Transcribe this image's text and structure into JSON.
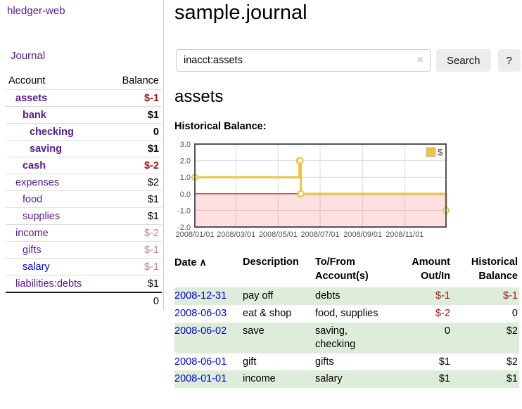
{
  "colors": {
    "purple": "#551a8b",
    "blue": "#0000dd",
    "negative": "#a11616",
    "negative_muted": "#c08585",
    "row_green": "#ddedd9",
    "button_bg": "#ececec",
    "chart_line": "#edc240",
    "chart_negative_fill": "rgba(255,0,0,0.12)",
    "chart_zero_line": "#a40000",
    "chart_border": "#545454",
    "chart_grid": "#dcdcdc"
  },
  "app": {
    "title": "hledger-web"
  },
  "sidebar": {
    "nav_journal": "Journal",
    "accounts_table": {
      "headers": {
        "account": "Account",
        "balance": "Balance"
      },
      "rows": [
        {
          "name": "assets",
          "indent": 1,
          "balance": "$-1",
          "bold": true,
          "negative": "strong"
        },
        {
          "name": "bank",
          "indent": 2,
          "balance": "$1",
          "bold": true
        },
        {
          "name": "checking",
          "indent": 3,
          "balance": "0",
          "bold": true
        },
        {
          "name": "saving",
          "indent": 3,
          "balance": "$1",
          "bold": true
        },
        {
          "name": "cash",
          "indent": 2,
          "balance": "$-2",
          "bold": true,
          "negative": "strong"
        },
        {
          "name": "expenses",
          "indent": 1,
          "balance": "$2"
        },
        {
          "name": "food",
          "indent": 2,
          "balance": "$1"
        },
        {
          "name": "supplies",
          "indent": 2,
          "balance": "$1"
        },
        {
          "name": "income",
          "indent": 1,
          "balance": "$-2",
          "negative": "muted"
        },
        {
          "name": "gifts",
          "indent": 2,
          "balance": "$-1",
          "negative": "muted"
        },
        {
          "name": "salary",
          "indent": 2,
          "balance": "$-1",
          "negative": "muted",
          "link_style": "unvisited"
        },
        {
          "name": "liabilities:debts",
          "indent": 1,
          "balance": "$1"
        }
      ],
      "total": "0"
    }
  },
  "main": {
    "title": "sample.journal",
    "search": {
      "value": "inacct:assets",
      "clear_icon": "×",
      "button_label": "Search",
      "help_label": "?"
    },
    "account_heading": "assets"
  },
  "chart_data": {
    "type": "line",
    "style": "step-after",
    "title": "Historical Balance:",
    "series": [
      {
        "name": "$",
        "color": "#edc240",
        "points": [
          {
            "x": "2008-01-01",
            "y": 1
          },
          {
            "x": "2008-06-01",
            "y": 2
          },
          {
            "x": "2008-06-02",
            "y": 2
          },
          {
            "x": "2008-06-03",
            "y": 0
          },
          {
            "x": "2008-12-31",
            "y": -1
          }
        ]
      }
    ],
    "x_range": [
      "2008-01-01",
      "2008-12-31"
    ],
    "ylim": [
      -2,
      3
    ],
    "x_ticks": [
      {
        "date": "2008-01-01",
        "label": "2008/01/01"
      },
      {
        "date": "2008-03-01",
        "label": "2008/03/01"
      },
      {
        "date": "2008-05-01",
        "label": "2008/05/01"
      },
      {
        "date": "2008-07-01",
        "label": "2008/07/01"
      },
      {
        "date": "2008-09-01",
        "label": "2008/09/01"
      },
      {
        "date": "2008-11-01",
        "label": "2008/11/01"
      }
    ],
    "y_ticks": [
      {
        "value": 3,
        "label": "3.0"
      },
      {
        "value": 2,
        "label": "2.0"
      },
      {
        "value": 1,
        "label": "1.0"
      },
      {
        "value": 0,
        "label": "0.0"
      },
      {
        "value": -1,
        "label": "-1.0"
      },
      {
        "value": -2,
        "label": "-2.0"
      }
    ],
    "grid": true,
    "legend": {
      "position": "top-right",
      "entries": [
        {
          "label": "$",
          "color": "#edc240"
        }
      ]
    }
  },
  "register_table": {
    "headers": {
      "date": "Date",
      "sort_icon": "∧",
      "description": "Description",
      "accounts": "To/From Account(s)",
      "amount": "Amount Out/In",
      "balance": "Historical Balance"
    },
    "rows": [
      {
        "date": "2008-12-31",
        "description": "pay off",
        "accounts": "debts",
        "amount": "$-1",
        "balance": "$-1"
      },
      {
        "date": "2008-06-03",
        "description": "eat & shop",
        "accounts": "food, supplies",
        "amount": "$-2",
        "balance": "0"
      },
      {
        "date": "2008-06-02",
        "description": "save",
        "accounts": "saving, checking",
        "amount": "0",
        "balance": "$2"
      },
      {
        "date": "2008-06-01",
        "description": "gift",
        "accounts": "gifts",
        "amount": "$1",
        "balance": "$2"
      },
      {
        "date": "2008-01-01",
        "description": "income",
        "accounts": "salary",
        "amount": "$1",
        "balance": "$1"
      }
    ]
  }
}
